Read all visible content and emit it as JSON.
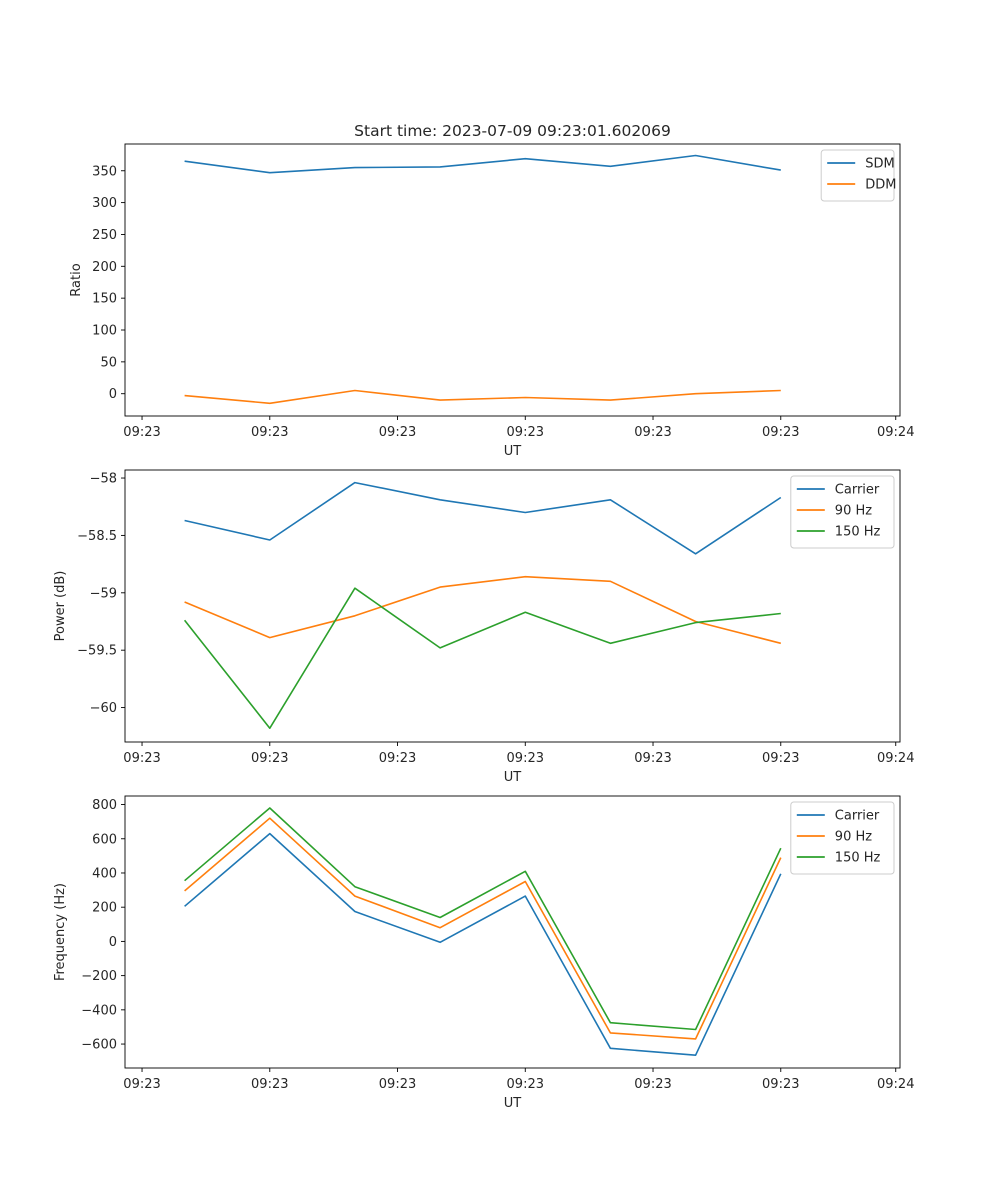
{
  "chart_data": [
    {
      "type": "line",
      "title": "Start time: 2023-07-09 09:23:01.602069",
      "xlabel": "UT",
      "ylabel": "Ratio",
      "x_tick_labels": [
        "09:23",
        "09:23",
        "09:23",
        "09:23",
        "09:23",
        "09:23",
        "09:24"
      ],
      "x": [
        1,
        2,
        3,
        4,
        5,
        6,
        7,
        8
      ],
      "xlim": [
        0.3,
        9.4
      ],
      "ylim": [
        -35,
        392
      ],
      "y_ticks": [
        0,
        50,
        100,
        150,
        200,
        250,
        300,
        350
      ],
      "legend_position": "upper-right",
      "series": [
        {
          "name": "SDM",
          "color": "#1f77b4",
          "values": [
            365,
            347,
            355,
            356,
            369,
            357,
            374,
            351
          ]
        },
        {
          "name": "DDM",
          "color": "#ff7f0e",
          "values": [
            -3,
            -15,
            5,
            -10,
            -6,
            -10,
            0,
            5
          ]
        }
      ]
    },
    {
      "type": "line",
      "title": "",
      "xlabel": "UT",
      "ylabel": "Power (dB)",
      "x_tick_labels": [
        "09:23",
        "09:23",
        "09:23",
        "09:23",
        "09:23",
        "09:23",
        "09:24"
      ],
      "x": [
        1,
        2,
        3,
        4,
        5,
        6,
        7,
        8
      ],
      "xlim": [
        0.3,
        9.4
      ],
      "ylim": [
        -60.3,
        -57.93
      ],
      "y_ticks": [
        -60.0,
        -59.5,
        -59.0,
        -58.5,
        -58.0
      ],
      "legend_position": "upper-right",
      "series": [
        {
          "name": "Carrier",
          "color": "#1f77b4",
          "values": [
            -58.37,
            -58.54,
            -58.04,
            -58.19,
            -58.3,
            -58.19,
            -58.66,
            -58.17
          ]
        },
        {
          "name": "90 Hz",
          "color": "#ff7f0e",
          "values": [
            -59.08,
            -59.39,
            -59.2,
            -58.95,
            -58.86,
            -58.9,
            -59.25,
            -59.44
          ]
        },
        {
          "name": "150 Hz",
          "color": "#2ca02c",
          "values": [
            -59.24,
            -60.18,
            -58.96,
            -59.48,
            -59.17,
            -59.44,
            -59.26,
            -59.18
          ]
        }
      ]
    },
    {
      "type": "line",
      "title": "",
      "xlabel": "UT",
      "ylabel": "Frequency (Hz)",
      "x_tick_labels": [
        "09:23",
        "09:23",
        "09:23",
        "09:23",
        "09:23",
        "09:23",
        "09:24"
      ],
      "x": [
        1,
        2,
        3,
        4,
        5,
        6,
        7,
        8
      ],
      "xlim": [
        0.3,
        9.4
      ],
      "ylim": [
        -740,
        850
      ],
      "y_ticks": [
        -600,
        -400,
        -200,
        0,
        200,
        400,
        600,
        800
      ],
      "legend_position": "upper-right",
      "series": [
        {
          "name": "Carrier",
          "color": "#1f77b4",
          "values": [
            205,
            630,
            175,
            -5,
            265,
            -625,
            -665,
            395
          ]
        },
        {
          "name": "90 Hz",
          "color": "#ff7f0e",
          "values": [
            295,
            720,
            265,
            80,
            350,
            -535,
            -570,
            490
          ]
        },
        {
          "name": "150 Hz",
          "color": "#2ca02c",
          "values": [
            355,
            780,
            320,
            140,
            410,
            -475,
            -515,
            545
          ]
        }
      ]
    }
  ]
}
